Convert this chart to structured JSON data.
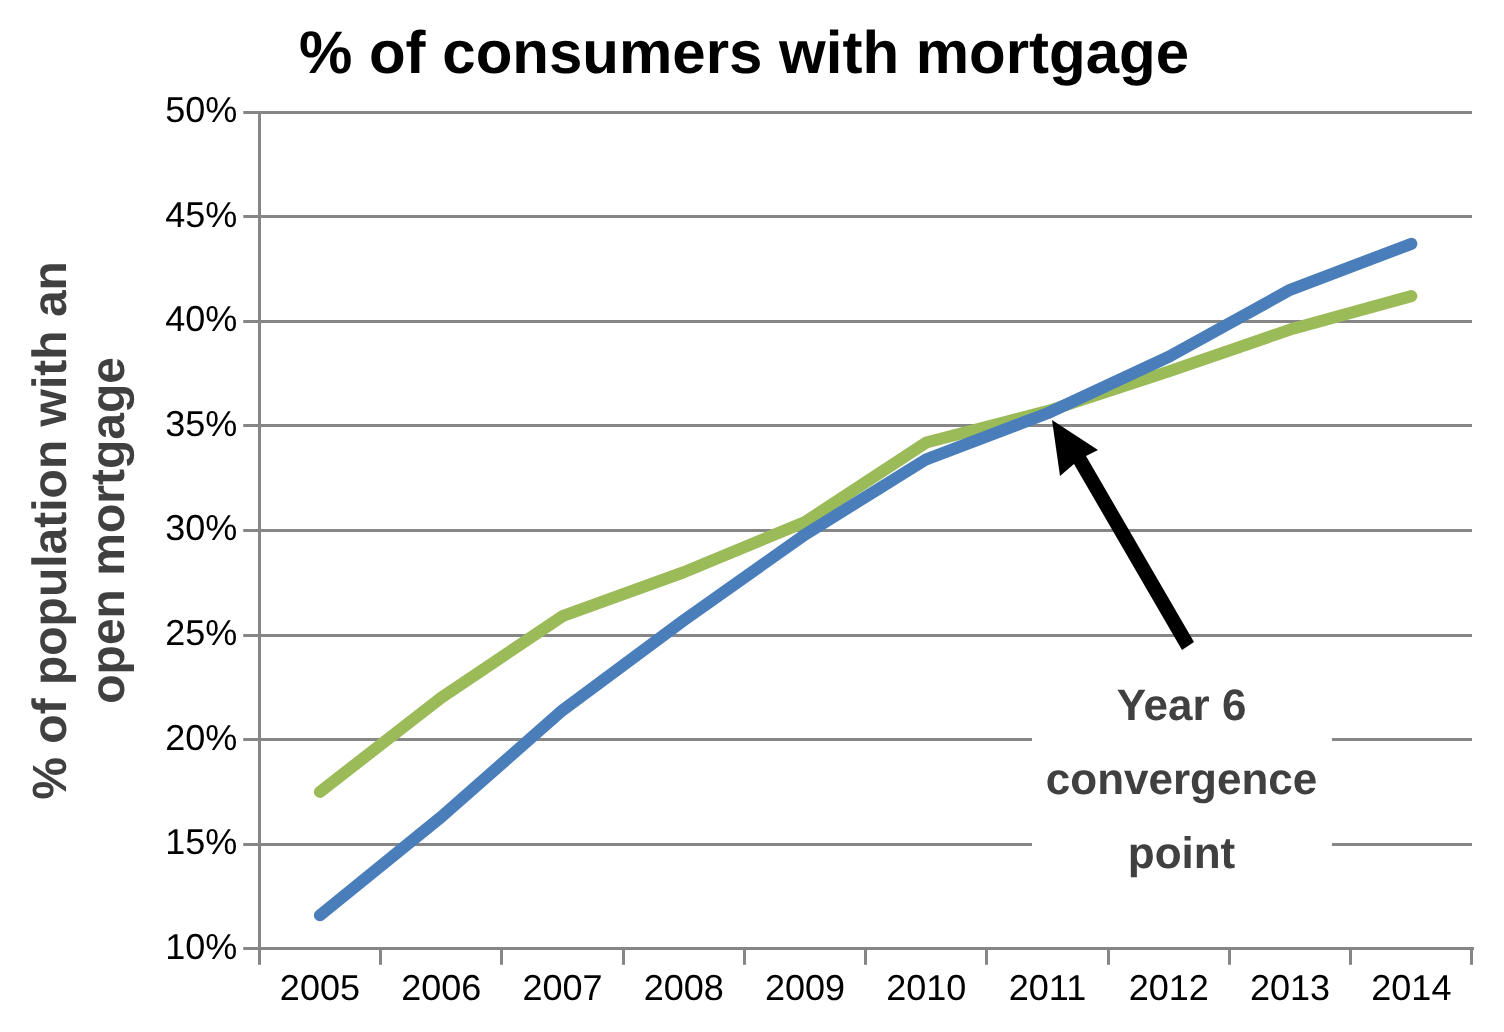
{
  "chart_data": {
    "type": "line",
    "title": "% of consumers with mortgage",
    "ylabel": "% of population with an\nopen mortgage",
    "categories": [
      "2005",
      "2006",
      "2007",
      "2008",
      "2009",
      "2010",
      "2011",
      "2012",
      "2013",
      "2014"
    ],
    "series": [
      {
        "color": "#4a7ebb",
        "values": [
          11.6,
          16.3,
          21.4,
          25.7,
          29.8,
          33.4,
          35.6,
          38.3,
          41.5,
          43.7
        ]
      },
      {
        "color": "#9bbb59",
        "values": [
          17.5,
          22.0,
          25.9,
          28.0,
          30.4,
          34.2,
          35.7,
          37.6,
          39.6,
          41.2
        ]
      }
    ],
    "ylim": [
      10,
      50
    ],
    "yticks": [
      {
        "value": 10,
        "label": "10%"
      },
      {
        "value": 15,
        "label": "15%"
      },
      {
        "value": 20,
        "label": "20%"
      },
      {
        "value": 25,
        "label": "25%"
      },
      {
        "value": 30,
        "label": "30%"
      },
      {
        "value": 35,
        "label": "35%"
      },
      {
        "value": 40,
        "label": "40%"
      },
      {
        "value": 45,
        "label": "45%"
      },
      {
        "value": 50,
        "label": "50%"
      }
    ],
    "grid": "y",
    "legend": false,
    "marker": "none",
    "line_style": "solid",
    "annotations": [
      "Year 6\nconvergence\npoint"
    ]
  }
}
